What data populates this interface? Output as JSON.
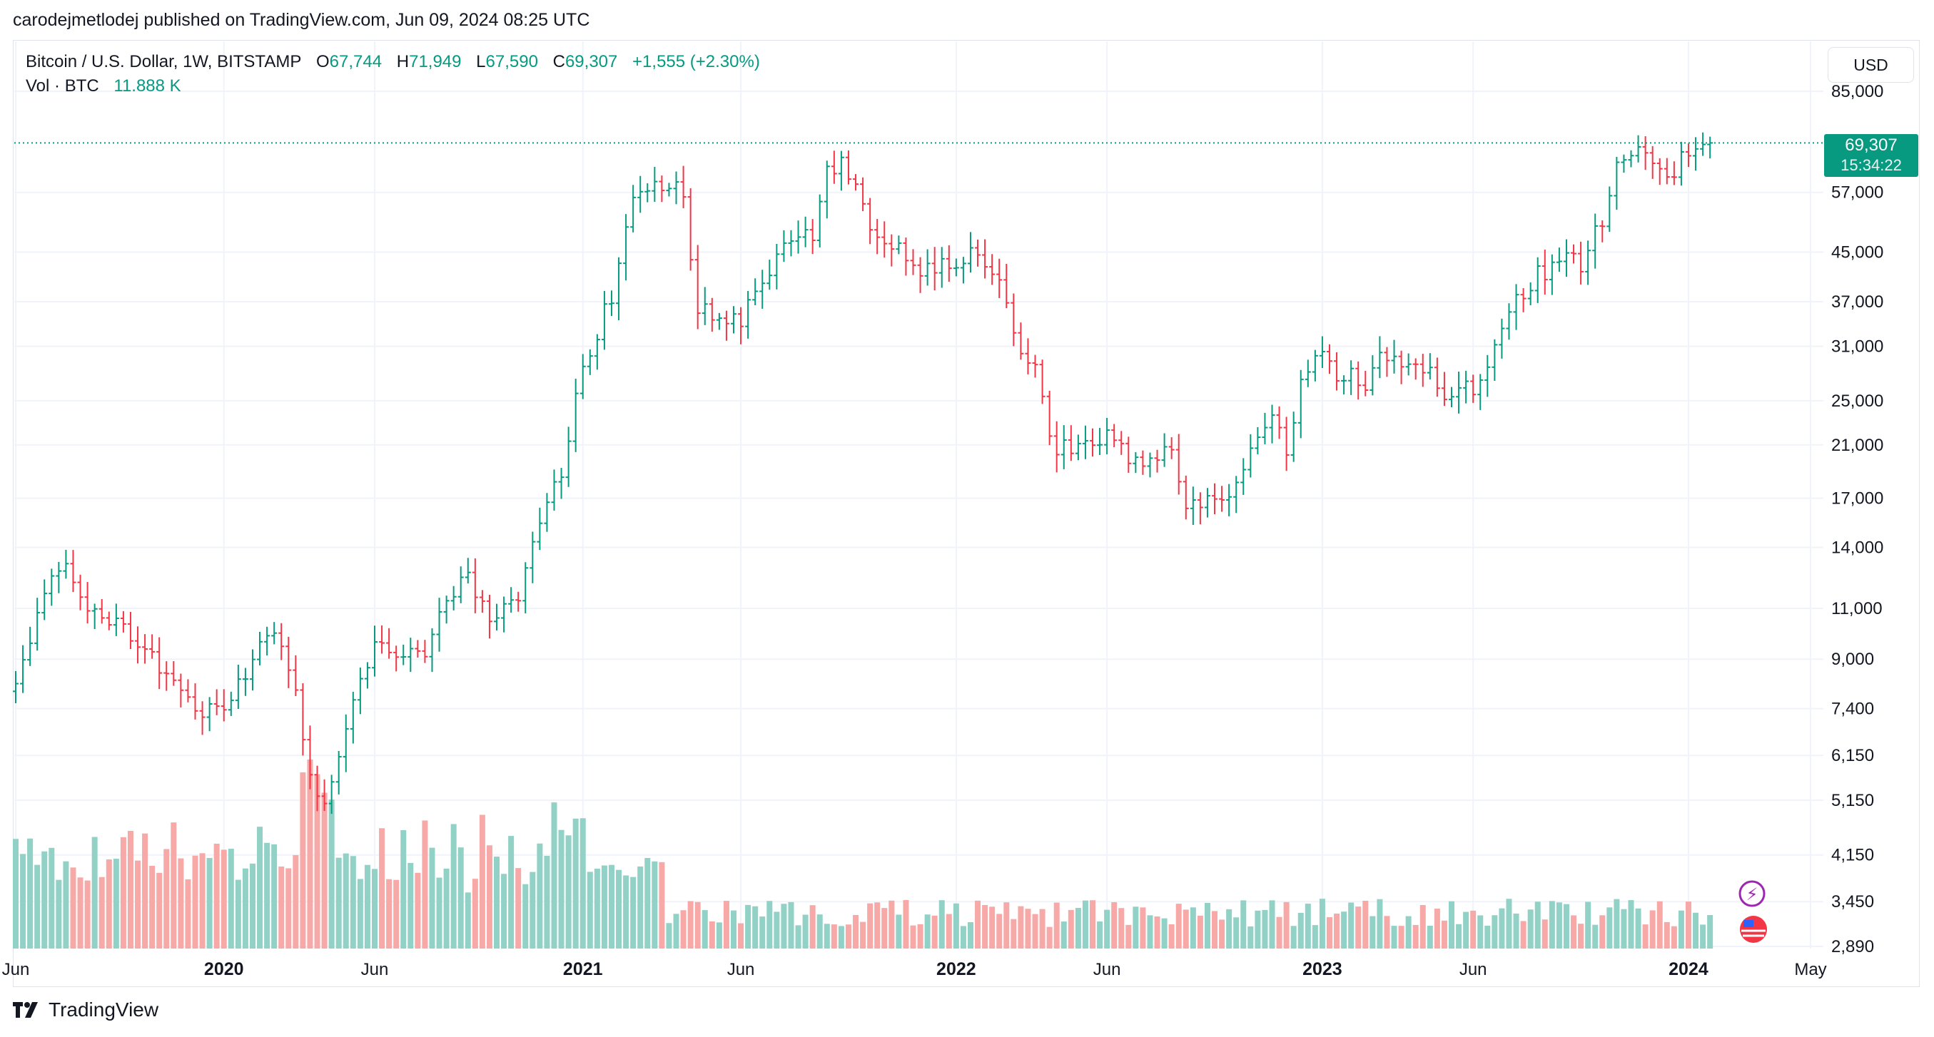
{
  "header": {
    "published_text": "carodejmetlodej published on TradingView.com, Jun 09, 2024 08:25 UTC"
  },
  "legend": {
    "symbol": "Bitcoin / U.S. Dollar, 1W, BITSTAMP",
    "o_label": "O",
    "o_value": "67,744",
    "h_label": "H",
    "h_value": "71,949",
    "l_label": "L",
    "l_value": "67,590",
    "c_label": "C",
    "c_value": "69,307",
    "change": "+1,555 (+2.30%)",
    "vol_label": "Vol · BTC",
    "vol_value": "11.888 K"
  },
  "currency_button": "USD",
  "last_price": {
    "price": "69,307",
    "countdown": "15:34:22"
  },
  "footer": {
    "brand": "TradingView"
  },
  "colors": {
    "up": "#089981",
    "down": "#f23645",
    "vol_up": "#92d1c6",
    "vol_down": "#f7a9a7",
    "grid": "#f0f3fa"
  },
  "chart_data": {
    "type": "candlestick",
    "title": "Bitcoin / U.S. Dollar, 1W, BITSTAMP",
    "y_scale": "log",
    "y_ticks": [
      "85,000",
      "69,307",
      "57,000",
      "45,000",
      "37,000",
      "31,000",
      "25,000",
      "21,000",
      "17,000",
      "14,000",
      "11,000",
      "9,000",
      "7,400",
      "6,150",
      "5,150",
      "4,150",
      "3,450",
      "2,890"
    ],
    "y_tick_values": [
      85000,
      57000,
      45000,
      37000,
      31000,
      25000,
      21000,
      17000,
      14000,
      11000,
      9000,
      7400,
      6150,
      5150,
      4150,
      3450,
      2890
    ],
    "x_ticks": [
      {
        "label": "Jun",
        "bold": false
      },
      {
        "label": "2020",
        "bold": true
      },
      {
        "label": "Jun",
        "bold": false
      },
      {
        "label": "2021",
        "bold": true
      },
      {
        "label": "Jun",
        "bold": false
      },
      {
        "label": "2022",
        "bold": true
      },
      {
        "label": "Jun",
        "bold": false
      },
      {
        "label": "2023",
        "bold": true
      },
      {
        "label": "Jun",
        "bold": false
      },
      {
        "label": "2024",
        "bold": true
      },
      {
        "label": "May",
        "bold": false
      }
    ],
    "x_tick_week_index": [
      0,
      29,
      50,
      79,
      101,
      131,
      152,
      182,
      203,
      233,
      250
    ],
    "last_close": 69307,
    "anchors": [
      [
        0,
        8000
      ],
      [
        4,
        12000
      ],
      [
        7,
        13500
      ],
      [
        10,
        11000
      ],
      [
        14,
        10500
      ],
      [
        18,
        9400
      ],
      [
        22,
        8000
      ],
      [
        25,
        7300
      ],
      [
        29,
        7500
      ],
      [
        33,
        9000
      ],
      [
        36,
        10200
      ],
      [
        39,
        8000
      ],
      [
        41,
        5800
      ],
      [
        43,
        5000
      ],
      [
        46,
        7000
      ],
      [
        50,
        9500
      ],
      [
        53,
        9300
      ],
      [
        57,
        9200
      ],
      [
        60,
        11600
      ],
      [
        63,
        12300
      ],
      [
        66,
        10600
      ],
      [
        70,
        11700
      ],
      [
        73,
        15500
      ],
      [
        76,
        19000
      ],
      [
        79,
        29000
      ],
      [
        81,
        33000
      ],
      [
        83,
        38000
      ],
      [
        86,
        57000
      ],
      [
        89,
        58000
      ],
      [
        91,
        60000
      ],
      [
        93,
        55000
      ],
      [
        95,
        36000
      ],
      [
        98,
        34000
      ],
      [
        101,
        34000
      ],
      [
        104,
        40000
      ],
      [
        106,
        45000
      ],
      [
        109,
        48000
      ],
      [
        111,
        47000
      ],
      [
        113,
        62000
      ],
      [
        115,
        65000
      ],
      [
        117,
        57000
      ],
      [
        119,
        50000
      ],
      [
        122,
        47000
      ],
      [
        125,
        42000
      ],
      [
        128,
        42000
      ],
      [
        131,
        43000
      ],
      [
        133,
        46000
      ],
      [
        135,
        41000
      ],
      [
        138,
        38000
      ],
      [
        140,
        30000
      ],
      [
        142,
        29500
      ],
      [
        144,
        21000
      ],
      [
        147,
        20500
      ],
      [
        150,
        21000
      ],
      [
        152,
        22500
      ],
      [
        155,
        20000
      ],
      [
        158,
        19500
      ],
      [
        161,
        20500
      ],
      [
        163,
        16500
      ],
      [
        166,
        17000
      ],
      [
        169,
        16900
      ],
      [
        172,
        20000
      ],
      [
        174,
        22500
      ],
      [
        176,
        23000
      ],
      [
        177,
        20000
      ],
      [
        179,
        27500
      ],
      [
        182,
        29500
      ],
      [
        185,
        27500
      ],
      [
        188,
        27000
      ],
      [
        190,
        30000
      ],
      [
        193,
        29500
      ],
      [
        196,
        29000
      ],
      [
        199,
        26000
      ],
      [
        202,
        26000
      ],
      [
        204,
        27000
      ],
      [
        206,
        30000
      ],
      [
        209,
        37000
      ],
      [
        212,
        41000
      ],
      [
        215,
        44000
      ],
      [
        218,
        43000
      ],
      [
        221,
        51000
      ],
      [
        223,
        62000
      ],
      [
        225,
        68000
      ],
      [
        227,
        69000
      ],
      [
        229,
        64000
      ],
      [
        231,
        62000
      ],
      [
        233,
        67000
      ],
      [
        235,
        68000
      ],
      [
        236,
        69307
      ]
    ]
  }
}
